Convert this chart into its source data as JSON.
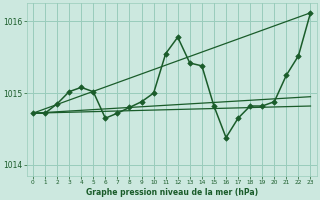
{
  "background_color": "#cce8df",
  "grid_color": "#99ccbb",
  "line_color": "#1a5c2a",
  "xlabel": "Graphe pression niveau de la mer (hPa)",
  "xlim": [
    -0.5,
    23.5
  ],
  "ylim": [
    1013.85,
    1016.25
  ],
  "yticks": [
    1014,
    1015,
    1016
  ],
  "xticks": [
    0,
    1,
    2,
    3,
    4,
    5,
    6,
    7,
    8,
    9,
    10,
    11,
    12,
    13,
    14,
    15,
    16,
    17,
    18,
    19,
    20,
    21,
    22,
    23
  ],
  "series": [
    {
      "x": [
        0,
        1,
        2,
        3,
        4,
        5,
        6,
        7,
        8,
        9,
        10,
        11,
        12,
        13,
        14,
        15,
        16,
        17,
        18,
        19,
        20,
        21,
        22,
        23
      ],
      "y": [
        1014.72,
        1014.72,
        1014.85,
        1015.02,
        1015.08,
        1015.02,
        1014.65,
        1014.72,
        1014.8,
        1014.88,
        1015.0,
        1015.55,
        1015.78,
        1015.42,
        1015.38,
        1014.82,
        1014.38,
        1014.65,
        1014.82,
        1014.82,
        1014.88,
        1015.25,
        1015.52,
        1016.12
      ],
      "marker": "D",
      "markersize": 2.8,
      "linewidth": 1.1
    },
    {
      "x": [
        0,
        23
      ],
      "y": [
        1014.72,
        1016.12
      ],
      "marker": null,
      "linewidth": 0.9
    },
    {
      "x": [
        0,
        23
      ],
      "y": [
        1014.72,
        1014.82
      ],
      "marker": null,
      "linewidth": 0.9
    },
    {
      "x": [
        0,
        23
      ],
      "y": [
        1014.72,
        1014.95
      ],
      "marker": null,
      "linewidth": 0.9
    }
  ]
}
